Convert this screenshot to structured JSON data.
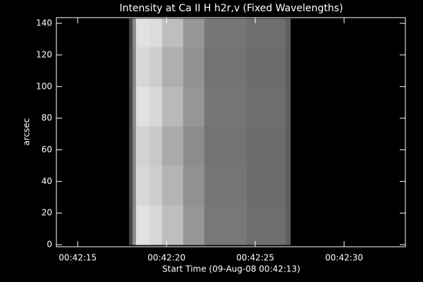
{
  "chart_data": {
    "type": "image",
    "title": "Intensity at Ca II H h2r,v (Fixed Wavelengths)",
    "x_label": "Start Time (09-Aug-08 00:42:13)",
    "y_label": "arcsec",
    "xlim": [
      2533.8,
      2553.45
    ],
    "ylim": [
      -1.3,
      143.6
    ],
    "xticks": [
      {
        "value": 2535,
        "label": "00:42:15"
      },
      {
        "value": 2540,
        "label": "00:42:20"
      },
      {
        "value": 2545,
        "label": "00:42:25"
      },
      {
        "value": 2550,
        "label": "00:42:30"
      }
    ],
    "yticks": [
      0,
      20,
      40,
      60,
      80,
      100,
      120,
      140
    ],
    "xbins": [
      2537.89,
      2538.09,
      2538.28,
      2539.04,
      2539.75,
      2540.94,
      2542.13,
      2544.51,
      2546.7,
      2546.97
    ],
    "ybins": [
      0,
      25,
      50,
      75,
      100,
      125,
      143
    ],
    "zlim": [
      0,
      255
    ],
    "colormap": "gray",
    "z": [
      [
        70,
        140,
        225,
        215,
        190,
        150,
        120,
        110,
        95
      ],
      [
        70,
        135,
        215,
        205,
        180,
        145,
        118,
        108,
        95
      ],
      [
        70,
        135,
        210,
        200,
        170,
        140,
        115,
        108,
        95
      ],
      [
        70,
        140,
        225,
        215,
        185,
        150,
        118,
        110,
        95
      ],
      [
        70,
        135,
        215,
        205,
        175,
        145,
        115,
        108,
        95
      ],
      [
        70,
        140,
        225,
        220,
        190,
        150,
        118,
        110,
        95
      ]
    ]
  }
}
